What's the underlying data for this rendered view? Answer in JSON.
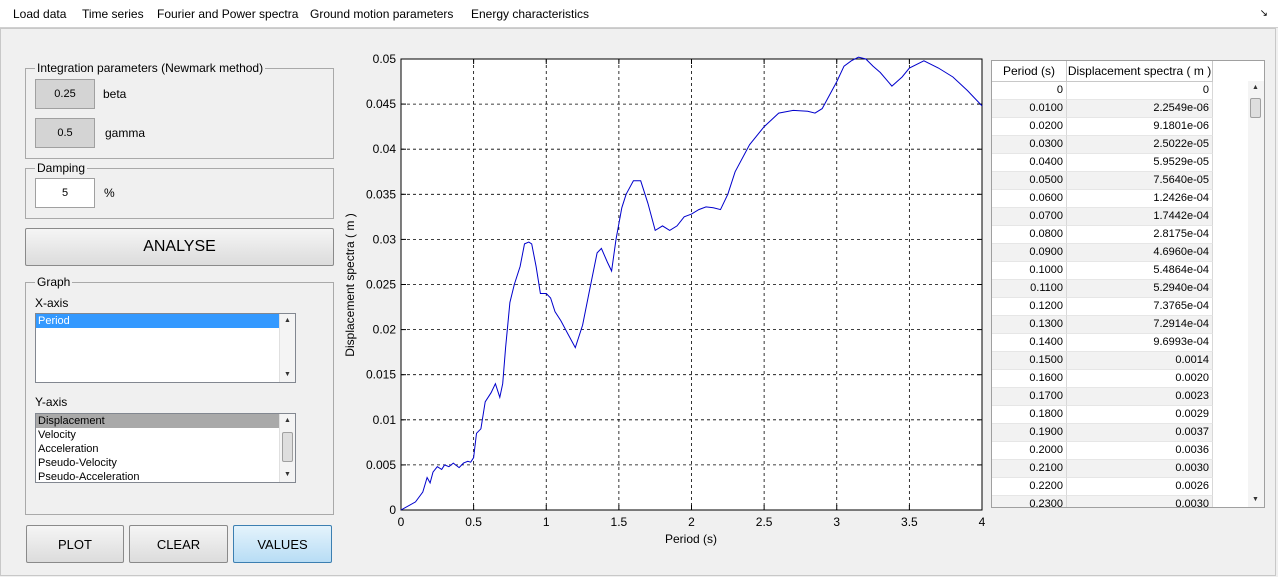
{
  "menu": [
    {
      "label": "Load data"
    },
    {
      "label": "Time series"
    },
    {
      "label": "Fourier and Power spectra"
    },
    {
      "label": "Ground motion parameters"
    },
    {
      "label": "Energy characteristics"
    }
  ],
  "integration": {
    "title": "Integration parameters (Newmark method)",
    "beta_value": "0.25",
    "beta_label": "beta",
    "gamma_value": "0.5",
    "gamma_label": "gamma"
  },
  "damping": {
    "title": "Damping",
    "value": "5",
    "unit": "%"
  },
  "analyse_label": "ANALYSE",
  "graph": {
    "title": "Graph",
    "xaxis_label": "X-axis",
    "xaxis_options": [
      "Period"
    ],
    "yaxis_label": "Y-axis",
    "yaxis_options": [
      "Displacement",
      "Velocity",
      "Acceleration",
      "Pseudo-Velocity",
      "Pseudo-Acceleration"
    ]
  },
  "buttons": {
    "plot": "PLOT",
    "clear": "CLEAR",
    "values": "VALUES"
  },
  "table": {
    "headers": [
      "Period (s)",
      "Displacement spectra ( m )"
    ],
    "rows": [
      [
        "0",
        "0"
      ],
      [
        "0.0100",
        "2.2549e-06"
      ],
      [
        "0.0200",
        "9.1801e-06"
      ],
      [
        "0.0300",
        "2.5022e-05"
      ],
      [
        "0.0400",
        "5.9529e-05"
      ],
      [
        "0.0500",
        "7.5640e-05"
      ],
      [
        "0.0600",
        "1.2426e-04"
      ],
      [
        "0.0700",
        "1.7442e-04"
      ],
      [
        "0.0800",
        "2.8175e-04"
      ],
      [
        "0.0900",
        "4.6960e-04"
      ],
      [
        "0.1000",
        "5.4864e-04"
      ],
      [
        "0.1100",
        "5.2940e-04"
      ],
      [
        "0.1200",
        "7.3765e-04"
      ],
      [
        "0.1300",
        "7.2914e-04"
      ],
      [
        "0.1400",
        "9.6993e-04"
      ],
      [
        "0.1500",
        "0.0014"
      ],
      [
        "0.1600",
        "0.0020"
      ],
      [
        "0.1700",
        "0.0023"
      ],
      [
        "0.1800",
        "0.0029"
      ],
      [
        "0.1900",
        "0.0037"
      ],
      [
        "0.2000",
        "0.0036"
      ],
      [
        "0.2100",
        "0.0030"
      ],
      [
        "0.2200",
        "0.0026"
      ],
      [
        "0.2300",
        "0.0030"
      ]
    ]
  },
  "chart_data": {
    "type": "line",
    "xlabel": "Period (s)",
    "ylabel": "Displacement spectra ( m )",
    "xlim": [
      0,
      4
    ],
    "ylim": [
      0,
      0.05
    ],
    "xticks": [
      "0",
      "0.5",
      "1",
      "1.5",
      "2",
      "2.5",
      "3",
      "3.5",
      "4"
    ],
    "yticks": [
      "0",
      "0.005",
      "0.01",
      "0.015",
      "0.02",
      "0.025",
      "0.03",
      "0.035",
      "0.04",
      "0.045",
      "0.05"
    ],
    "grid": true,
    "color": "#0000cc",
    "series": [
      {
        "x": [
          0,
          0.1,
          0.15,
          0.18,
          0.2,
          0.22,
          0.25,
          0.28,
          0.3,
          0.33,
          0.36,
          0.4,
          0.43,
          0.46,
          0.48,
          0.5,
          0.52,
          0.55,
          0.58,
          0.62,
          0.65,
          0.68,
          0.7,
          0.72,
          0.75,
          0.78,
          0.82,
          0.85,
          0.88,
          0.9,
          0.93,
          0.96,
          1.0,
          1.03,
          1.06,
          1.1,
          1.15,
          1.2,
          1.25,
          1.3,
          1.35,
          1.38,
          1.42,
          1.45,
          1.48,
          1.52,
          1.55,
          1.6,
          1.65,
          1.7,
          1.75,
          1.8,
          1.85,
          1.9,
          1.95,
          2.0,
          2.05,
          2.1,
          2.15,
          2.2,
          2.25,
          2.3,
          2.4,
          2.5,
          2.6,
          2.7,
          2.8,
          2.85,
          2.9,
          2.95,
          3.0,
          3.05,
          3.1,
          3.15,
          3.2,
          3.25,
          3.3,
          3.38,
          3.45,
          3.5,
          3.6,
          3.7,
          3.8,
          3.9,
          4.0
        ],
        "y": [
          0,
          0.0009,
          0.002,
          0.0036,
          0.003,
          0.0042,
          0.0048,
          0.0045,
          0.005,
          0.0048,
          0.0052,
          0.0047,
          0.0052,
          0.0054,
          0.0053,
          0.0058,
          0.0085,
          0.009,
          0.012,
          0.013,
          0.014,
          0.0125,
          0.014,
          0.018,
          0.023,
          0.025,
          0.027,
          0.0295,
          0.0297,
          0.0295,
          0.027,
          0.024,
          0.024,
          0.0235,
          0.022,
          0.021,
          0.0195,
          0.018,
          0.0205,
          0.0245,
          0.0285,
          0.029,
          0.0275,
          0.0265,
          0.03,
          0.0335,
          0.035,
          0.0365,
          0.0365,
          0.034,
          0.031,
          0.0315,
          0.031,
          0.0315,
          0.0325,
          0.0328,
          0.0333,
          0.0336,
          0.0335,
          0.0333,
          0.035,
          0.0375,
          0.0405,
          0.0425,
          0.044,
          0.0443,
          0.0442,
          0.044,
          0.0445,
          0.046,
          0.0475,
          0.0492,
          0.0498,
          0.0502,
          0.05,
          0.0492,
          0.0485,
          0.047,
          0.048,
          0.049,
          0.0498,
          0.049,
          0.048,
          0.0465,
          0.0448
        ]
      }
    ]
  }
}
